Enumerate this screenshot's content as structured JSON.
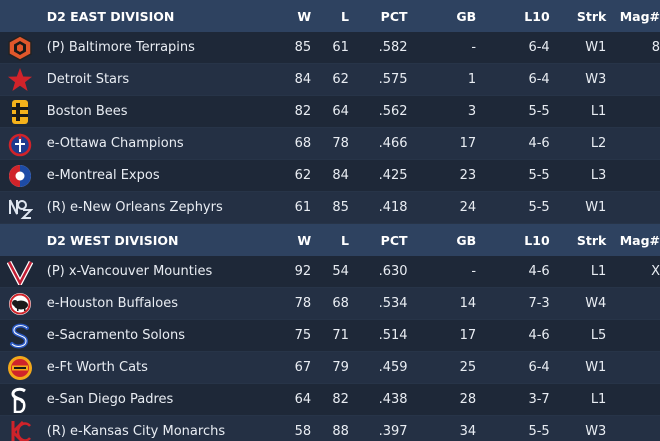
{
  "divisions": [
    {
      "name": "D2 EAST DIVISION",
      "columns": [
        "W",
        "L",
        "PCT",
        "GB",
        "L10",
        "Strk",
        "Mag#"
      ],
      "teams": [
        {
          "team": "(P) Baltimore Terrapins",
          "w": "85",
          "l": "61",
          "pct": ".582",
          "gb": "-",
          "l10": "6-4",
          "strk": "W1",
          "mag": "8",
          "logo": "terrapin-icon"
        },
        {
          "team": "Detroit Stars",
          "w": "84",
          "l": "62",
          "pct": ".575",
          "gb": "1",
          "l10": "6-4",
          "strk": "W3",
          "mag": "",
          "logo": "star-icon"
        },
        {
          "team": "Boston Bees",
          "w": "82",
          "l": "64",
          "pct": ".562",
          "gb": "3",
          "l10": "5-5",
          "strk": "L1",
          "mag": "",
          "logo": "bee-b-icon"
        },
        {
          "team": "e-Ottawa Champions",
          "w": "68",
          "l": "78",
          "pct": ".466",
          "gb": "17",
          "l10": "4-6",
          "strk": "L2",
          "mag": "",
          "logo": "champions-icon"
        },
        {
          "team": "e-Montreal Expos",
          "w": "62",
          "l": "84",
          "pct": ".425",
          "gb": "23",
          "l10": "5-5",
          "strk": "L3",
          "mag": "",
          "logo": "expos-icon"
        },
        {
          "team": "(R) e-New Orleans Zephyrs",
          "w": "61",
          "l": "85",
          "pct": ".418",
          "gb": "24",
          "l10": "5-5",
          "strk": "W1",
          "mag": "",
          "logo": "zephyrs-icon"
        }
      ]
    },
    {
      "name": "D2 WEST DIVISION",
      "columns": [
        "W",
        "L",
        "PCT",
        "GB",
        "L10",
        "Strk",
        "Mag#"
      ],
      "teams": [
        {
          "team": "(P) x-Vancouver Mounties",
          "w": "92",
          "l": "54",
          "pct": ".630",
          "gb": "-",
          "l10": "4-6",
          "strk": "L1",
          "mag": "X",
          "logo": "mounties-v-icon"
        },
        {
          "team": "e-Houston Buffaloes",
          "w": "78",
          "l": "68",
          "pct": ".534",
          "gb": "14",
          "l10": "7-3",
          "strk": "W4",
          "mag": "",
          "logo": "buffalo-icon"
        },
        {
          "team": "e-Sacramento Solons",
          "w": "75",
          "l": "71",
          "pct": ".514",
          "gb": "17",
          "l10": "4-6",
          "strk": "L5",
          "mag": "",
          "logo": "solons-s-icon"
        },
        {
          "team": "e-Ft Worth Cats",
          "w": "67",
          "l": "79",
          "pct": ".459",
          "gb": "25",
          "l10": "6-4",
          "strk": "W1",
          "mag": "",
          "logo": "cats-icon"
        },
        {
          "team": "e-San Diego Padres",
          "w": "64",
          "l": "82",
          "pct": ".438",
          "gb": "28",
          "l10": "3-7",
          "strk": "L1",
          "mag": "",
          "logo": "padres-sd-icon"
        },
        {
          "team": "(R) e-Kansas City Monarchs",
          "w": "58",
          "l": "88",
          "pct": ".397",
          "gb": "34",
          "l10": "5-5",
          "strk": "W3",
          "mag": "",
          "logo": "monarchs-kc-icon"
        }
      ]
    }
  ],
  "colors": {
    "header_bg": "#2e4260",
    "row_odd": "#1e2838",
    "row_even": "#243044",
    "text": "#e9edf3"
  }
}
